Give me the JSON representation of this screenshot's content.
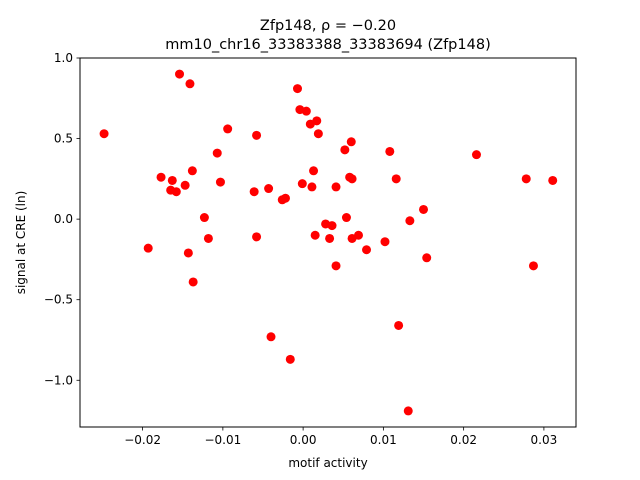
{
  "chart_data": {
    "type": "scatter",
    "title_line1": "Zfp148, ρ = −0.20",
    "title_line2": "mm10_chr16_33383388_33383694 (Zfp148)",
    "xlabel": "motif activity",
    "ylabel": "signal at CRE (ln)",
    "xlim": [
      -0.0278,
      0.034
    ],
    "ylim": [
      -1.29,
      1.0
    ],
    "xticks": [
      {
        "value": -0.02,
        "label": "−0.02"
      },
      {
        "value": -0.01,
        "label": "−0.01"
      },
      {
        "value": 0.0,
        "label": "0.00"
      },
      {
        "value": 0.01,
        "label": "0.01"
      },
      {
        "value": 0.02,
        "label": "0.02"
      },
      {
        "value": 0.03,
        "label": "0.03"
      }
    ],
    "yticks": [
      {
        "value": 1.0,
        "label": "1.0"
      },
      {
        "value": 0.5,
        "label": "0.5"
      },
      {
        "value": 0.0,
        "label": "0.0"
      },
      {
        "value": -0.5,
        "label": "−0.5"
      },
      {
        "value": -1.0,
        "label": "−1.0"
      }
    ],
    "marker_color": "#ff0000",
    "grid": false,
    "points": [
      [
        -0.0248,
        0.53
      ],
      [
        -0.0193,
        -0.18
      ],
      [
        -0.0177,
        0.26
      ],
      [
        -0.0165,
        0.18
      ],
      [
        -0.0163,
        0.24
      ],
      [
        -0.0158,
        0.17
      ],
      [
        -0.0154,
        0.9
      ],
      [
        -0.0147,
        0.21
      ],
      [
        -0.0143,
        -0.21
      ],
      [
        -0.0141,
        0.84
      ],
      [
        -0.0138,
        0.3
      ],
      [
        -0.0137,
        -0.39
      ],
      [
        -0.0123,
        0.01
      ],
      [
        -0.0118,
        -0.12
      ],
      [
        -0.0107,
        0.41
      ],
      [
        -0.0103,
        0.23
      ],
      [
        -0.0094,
        0.56
      ],
      [
        -0.0061,
        0.17
      ],
      [
        -0.0058,
        0.52
      ],
      [
        -0.0058,
        -0.11
      ],
      [
        -0.0043,
        0.19
      ],
      [
        -0.004,
        -0.73
      ],
      [
        -0.0026,
        0.12
      ],
      [
        -0.0022,
        0.13
      ],
      [
        -0.0016,
        -0.87
      ],
      [
        -0.0007,
        0.81
      ],
      [
        -0.0004,
        0.68
      ],
      [
        -0.0001,
        0.22
      ],
      [
        0.0004,
        0.67
      ],
      [
        0.0009,
        0.59
      ],
      [
        0.0011,
        0.2
      ],
      [
        0.0013,
        0.3
      ],
      [
        0.0015,
        -0.1
      ],
      [
        0.0017,
        0.61
      ],
      [
        0.0019,
        0.53
      ],
      [
        0.0028,
        -0.03
      ],
      [
        0.0033,
        -0.12
      ],
      [
        0.0036,
        -0.04
      ],
      [
        0.0041,
        -0.29
      ],
      [
        0.0041,
        0.2
      ],
      [
        0.0052,
        0.43
      ],
      [
        0.0054,
        0.01
      ],
      [
        0.0058,
        0.26
      ],
      [
        0.006,
        0.48
      ],
      [
        0.0061,
        -0.12
      ],
      [
        0.0061,
        0.25
      ],
      [
        0.0069,
        -0.1
      ],
      [
        0.0079,
        -0.19
      ],
      [
        0.0102,
        -0.14
      ],
      [
        0.0108,
        0.42
      ],
      [
        0.0116,
        0.25
      ],
      [
        0.0119,
        -0.66
      ],
      [
        0.0131,
        -1.19
      ],
      [
        0.0133,
        -0.01
      ],
      [
        0.015,
        0.06
      ],
      [
        0.0154,
        -0.24
      ],
      [
        0.0216,
        0.4
      ],
      [
        0.0278,
        0.25
      ],
      [
        0.0287,
        -0.29
      ],
      [
        0.0311,
        0.24
      ]
    ]
  }
}
